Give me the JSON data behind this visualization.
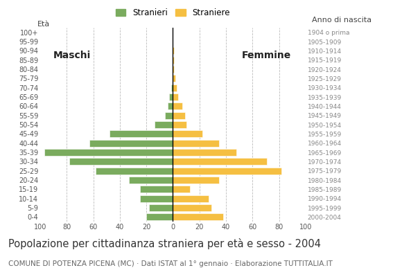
{
  "age_groups": [
    "100+",
    "95-99",
    "90-94",
    "85-89",
    "80-84",
    "75-79",
    "70-74",
    "65-69",
    "60-64",
    "55-59",
    "50-54",
    "45-49",
    "40-44",
    "35-39",
    "30-34",
    "25-29",
    "20-24",
    "15-19",
    "10-14",
    "5-9",
    "0-4"
  ],
  "birth_years": [
    "1904 o prima",
    "1905-1909",
    "1910-1914",
    "1915-1919",
    "1920-1924",
    "1925-1929",
    "1930-1934",
    "1935-1939",
    "1940-1944",
    "1945-1949",
    "1950-1954",
    "1955-1959",
    "1960-1964",
    "1965-1969",
    "1970-1974",
    "1975-1979",
    "1980-1984",
    "1985-1989",
    "1990-1994",
    "1995-1999",
    "2000-2004"
  ],
  "males": [
    0,
    0,
    0,
    0,
    0,
    0,
    1,
    3,
    4,
    6,
    14,
    48,
    63,
    97,
    78,
    58,
    33,
    25,
    25,
    18,
    20
  ],
  "females": [
    0,
    0,
    1,
    1,
    1,
    2,
    3,
    4,
    7,
    9,
    10,
    22,
    35,
    48,
    71,
    82,
    35,
    13,
    27,
    29,
    38
  ],
  "male_color": "#7aab5e",
  "female_color": "#f5bf42",
  "background_color": "#ffffff",
  "grid_color": "#bbbbbb",
  "axis_line_color": "#000000",
  "xlim": 100,
  "title": "Popolazione per cittadinanza straniera per età e sesso - 2004",
  "subtitle": "COMUNE DI POTENZA PICENA (MC) · Dati ISTAT al 1° gennaio · Elaborazione TUTTITALIA.IT",
  "legend_males": "Stranieri",
  "legend_females": "Straniere",
  "left_label": "Maschi",
  "right_label": "Femmine",
  "y_label": "Età",
  "right_axis_label": "Anno di nascita",
  "title_fontsize": 10.5,
  "subtitle_fontsize": 7.5,
  "tick_fontsize": 7.0,
  "label_fontsize": 8.0,
  "maschi_fontsize": 10,
  "femmine_fontsize": 10
}
